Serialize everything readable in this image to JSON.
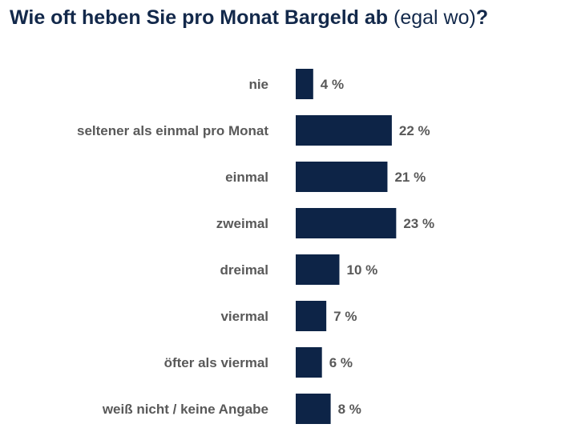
{
  "title": {
    "main": "Wie oft heben Sie pro Monat Bargeld ab",
    "sub": "(egal wo)",
    "qmark": "?"
  },
  "chart_data": {
    "type": "bar",
    "orientation": "horizontal",
    "categories": [
      "nie",
      "seltener als einmal pro Monat",
      "einmal",
      "zweimal",
      "dreimal",
      "viermal",
      "öfter als viermal",
      "weiß nicht / keine Angabe"
    ],
    "values": [
      4,
      22,
      21,
      23,
      10,
      7,
      6,
      8
    ],
    "value_labels": [
      "4 %",
      "22 %",
      "21 %",
      "23 %",
      "10 %",
      "7 %",
      "6 %",
      "8 %"
    ],
    "unit": "%",
    "bar_color": "#0d2447",
    "label_color": "#595959",
    "title_color": "#13294b",
    "grid": false,
    "legend": "none"
  }
}
